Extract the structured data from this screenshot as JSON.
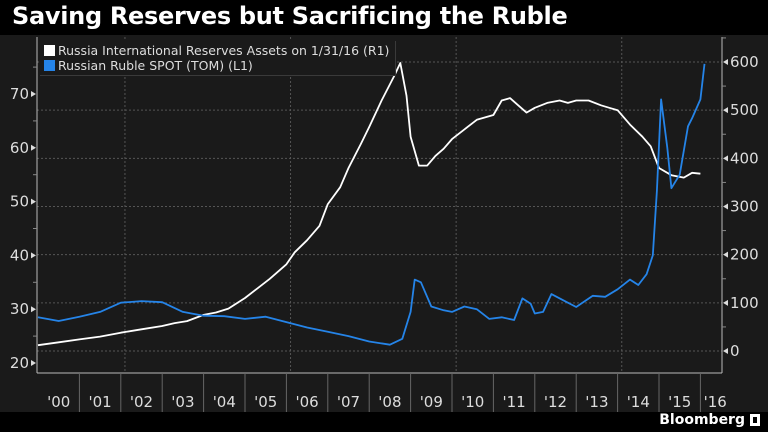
{
  "title": "Saving Reserves but Sacrificing the Ruble",
  "brand": "Bloomberg",
  "chart_data": {
    "type": "line",
    "title": "Saving Reserves but Sacrificing the Ruble",
    "xlabel": "",
    "x_ticks": [
      "'00",
      "'01",
      "'02",
      "'03",
      "'04",
      "'05",
      "'06",
      "'07",
      "'08",
      "'09",
      "'10",
      "'11",
      "'12",
      "'13",
      "'14",
      "'15",
      "'16"
    ],
    "x_range": [
      2000.0,
      2016.1
    ],
    "left_axis": {
      "ticks": [
        20,
        30,
        40,
        50,
        60,
        70
      ],
      "range": [
        18,
        80
      ]
    },
    "right_axis": {
      "ticks": [
        0,
        100,
        200,
        300,
        400,
        500,
        600
      ],
      "range": [
        -40,
        630
      ]
    },
    "grid": true,
    "legend_position": "top-left",
    "series": [
      {
        "name": "Russia International Reserves Assets  on 1/31/16 (R1)",
        "axis": "right",
        "color": "#ffffff",
        "x": [
          2000.0,
          2000.5,
          2001.0,
          2001.5,
          2002.0,
          2002.5,
          2003.0,
          2003.3,
          2003.6,
          2004.0,
          2004.3,
          2004.6,
          2005.0,
          2005.3,
          2005.6,
          2006.0,
          2006.2,
          2006.5,
          2006.8,
          2007.0,
          2007.3,
          2007.5,
          2007.8,
          2008.0,
          2008.3,
          2008.6,
          2008.75,
          2008.9,
          2009.0,
          2009.2,
          2009.4,
          2009.6,
          2009.8,
          2010.0,
          2010.3,
          2010.6,
          2010.8,
          2011.0,
          2011.2,
          2011.4,
          2011.6,
          2011.8,
          2012.0,
          2012.3,
          2012.6,
          2012.8,
          2013.0,
          2013.3,
          2013.6,
          2013.8,
          2014.0,
          2014.3,
          2014.6,
          2014.8,
          2015.0,
          2015.3,
          2015.6,
          2015.8,
          2016.0
        ],
        "values": [
          12,
          18,
          24,
          30,
          38,
          45,
          52,
          58,
          62,
          75,
          80,
          88,
          110,
          130,
          150,
          180,
          205,
          230,
          260,
          305,
          340,
          380,
          430,
          465,
          520,
          570,
          598,
          530,
          445,
          385,
          385,
          405,
          420,
          440,
          460,
          480,
          485,
          490,
          520,
          525,
          510,
          495,
          505,
          515,
          520,
          515,
          520,
          520,
          510,
          505,
          500,
          470,
          445,
          425,
          380,
          365,
          360,
          370,
          368
        ]
      },
      {
        "name": "Russian Ruble SPOT (TOM)  (L1)",
        "axis": "left",
        "color": "#2584e8",
        "x": [
          2000.0,
          2000.5,
          2001.0,
          2001.5,
          2002.0,
          2002.5,
          2003.0,
          2003.5,
          2004.0,
          2004.5,
          2005.0,
          2005.5,
          2006.0,
          2006.5,
          2007.0,
          2007.5,
          2008.0,
          2008.5,
          2008.8,
          2009.0,
          2009.1,
          2009.25,
          2009.5,
          2009.8,
          2010.0,
          2010.3,
          2010.6,
          2010.9,
          2011.2,
          2011.5,
          2011.7,
          2011.9,
          2012.0,
          2012.2,
          2012.4,
          2012.7,
          2013.0,
          2013.4,
          2013.7,
          2014.0,
          2014.3,
          2014.5,
          2014.7,
          2014.85,
          2014.95,
          2015.05,
          2015.2,
          2015.3,
          2015.5,
          2015.7,
          2015.8,
          2016.0,
          2016.1
        ],
        "values": [
          28.5,
          27.8,
          28.6,
          29.5,
          31.2,
          31.5,
          31.3,
          29.5,
          28.8,
          28.7,
          28.2,
          28.6,
          27.6,
          26.6,
          25.8,
          25.0,
          24.0,
          23.4,
          24.5,
          29.5,
          35.5,
          35.0,
          30.5,
          29.8,
          29.5,
          30.5,
          30.0,
          28.2,
          28.5,
          28.0,
          32.0,
          31.0,
          29.2,
          29.5,
          32.8,
          31.6,
          30.4,
          32.5,
          32.3,
          33.7,
          35.5,
          34.5,
          36.5,
          40.0,
          52.0,
          69.0,
          60.0,
          52.5,
          55.0,
          64.0,
          65.5,
          69.0,
          75.6
        ]
      }
    ]
  }
}
